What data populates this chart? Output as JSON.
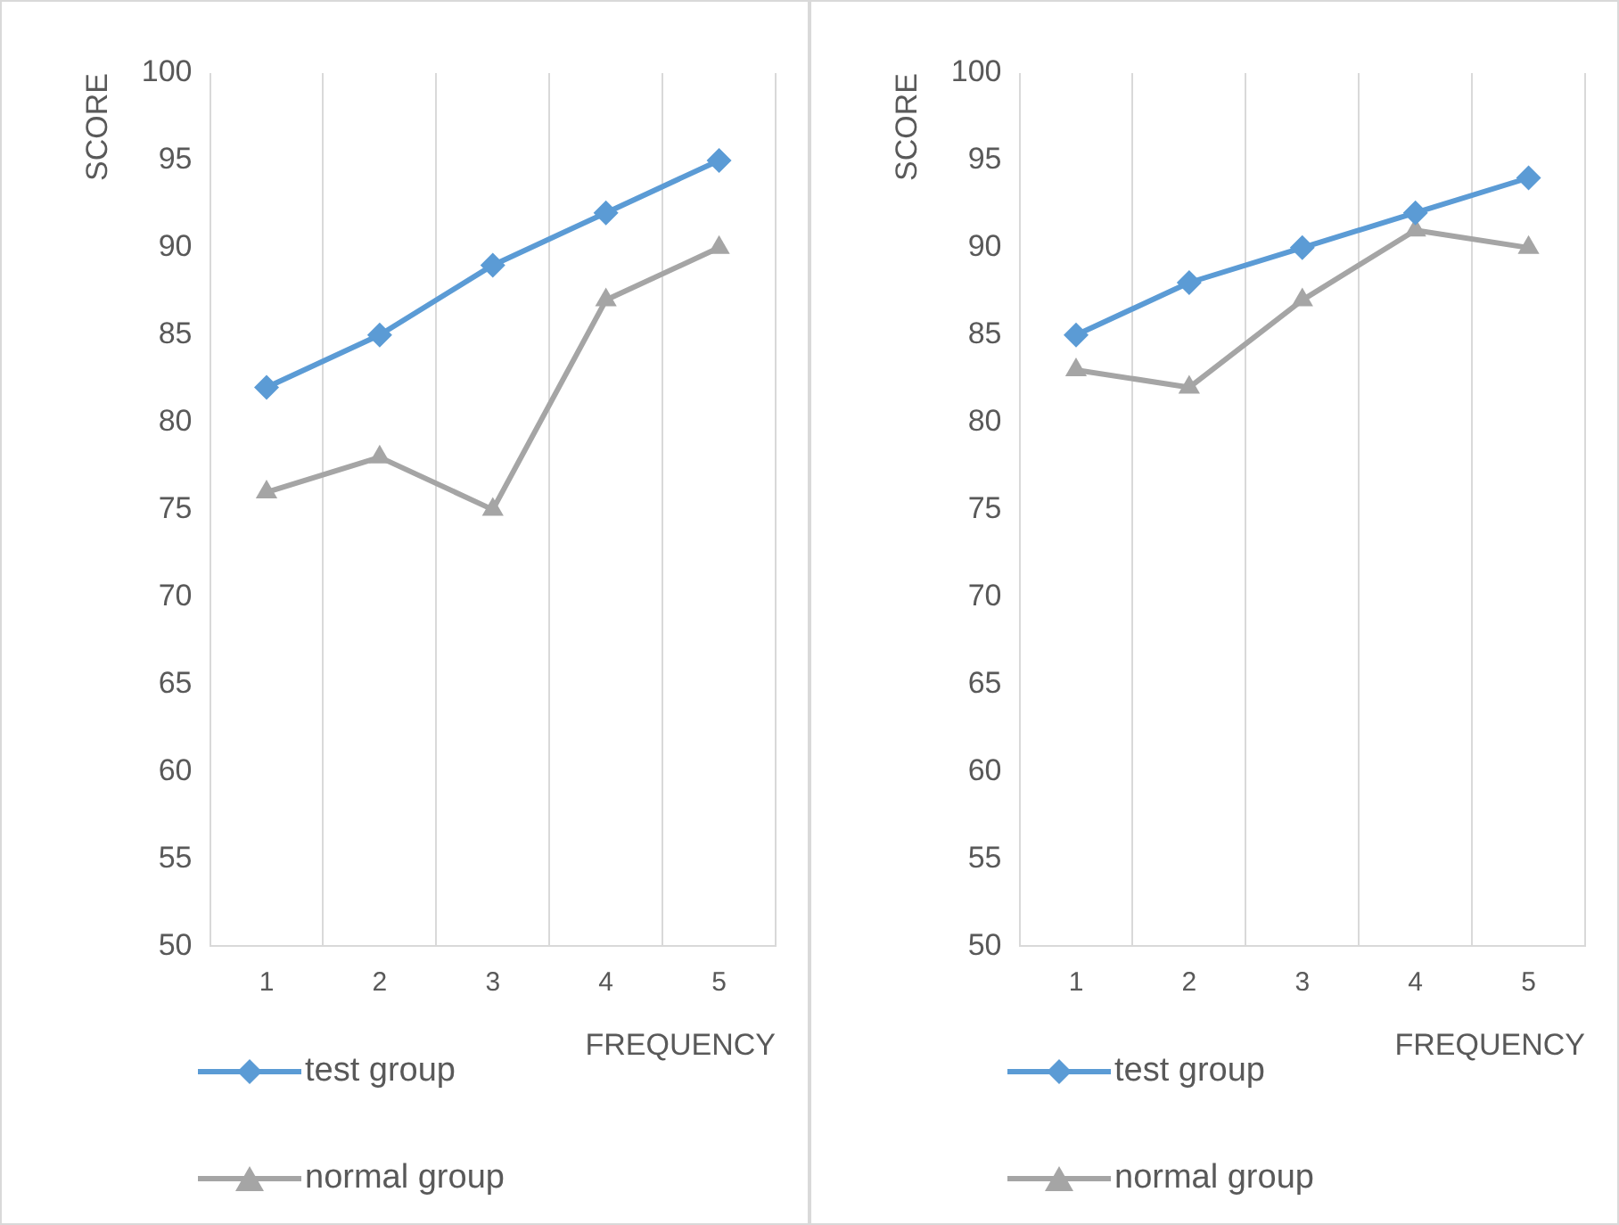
{
  "chart_data": [
    {
      "type": "line",
      "xlabel": "FREQUENCY",
      "ylabel": "SCORE",
      "categories": [
        "1",
        "2",
        "3",
        "4",
        "5"
      ],
      "ylim": [
        50,
        100
      ],
      "yticks": [
        50,
        55,
        60,
        65,
        70,
        75,
        80,
        85,
        90,
        95,
        100
      ],
      "grid": "x",
      "legend": "bottom left",
      "series": [
        {
          "name": "test group",
          "color": "#5b9bd5",
          "marker": "diamond",
          "values": [
            82,
            85,
            89,
            92,
            95
          ]
        },
        {
          "name": "normal group",
          "color": "#a5a5a5",
          "marker": "triangle",
          "values": [
            76,
            78,
            75,
            87,
            90
          ]
        }
      ]
    },
    {
      "type": "line",
      "xlabel": "FREQUENCY",
      "ylabel": "SCORE",
      "categories": [
        "1",
        "2",
        "3",
        "4",
        "5"
      ],
      "ylim": [
        50,
        100
      ],
      "yticks": [
        50,
        55,
        60,
        65,
        70,
        75,
        80,
        85,
        90,
        95,
        100
      ],
      "grid": "x",
      "legend": "bottom left",
      "series": [
        {
          "name": "test group",
          "color": "#5b9bd5",
          "marker": "diamond",
          "values": [
            85,
            88,
            90,
            92,
            94
          ]
        },
        {
          "name": "normal group",
          "color": "#a5a5a5",
          "marker": "triangle",
          "values": [
            83,
            82,
            87,
            91,
            90
          ]
        }
      ]
    }
  ]
}
